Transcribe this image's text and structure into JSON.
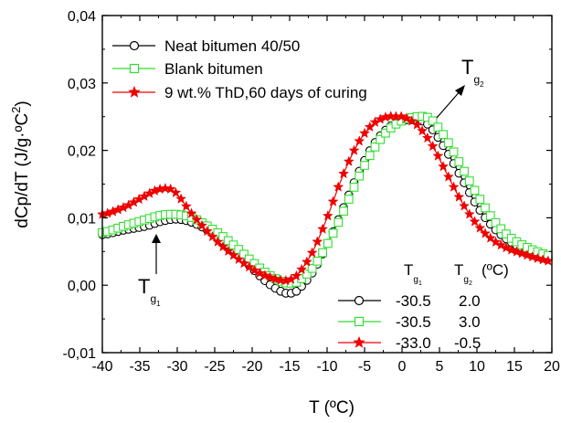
{
  "chart_data": {
    "type": "line",
    "xlabel": "T (ºC)",
    "ylabel": "dCp/dT (J/g·ºC²)",
    "ylabel_parts": {
      "pre": "dCp/dT (J/g·ºC",
      "sup": "2",
      "post": ")"
    },
    "xlim": [
      -40,
      20
    ],
    "ylim": [
      -0.01,
      0.04
    ],
    "x_ticks": [
      "-40",
      "-35",
      "-30",
      "-25",
      "-20",
      "-15",
      "-10",
      "-5",
      "0",
      "5",
      "10",
      "15",
      "20"
    ],
    "y_ticks": [
      "-0,01",
      "0,00",
      "0,01",
      "0,02",
      "0,03",
      "0,04"
    ],
    "grid": false,
    "legend_position": "top-left",
    "series": [
      {
        "name": "Neat bitumen 40/50",
        "color": "#000000",
        "marker": "circle",
        "x": [
          -40,
          -37,
          -34,
          -32,
          -30,
          -28,
          -26,
          -24,
          -22,
          -20,
          -18,
          -16,
          -15,
          -14,
          -12,
          -10,
          -8,
          -6,
          -4,
          -2,
          0,
          2,
          3,
          4,
          6,
          8,
          10,
          12,
          14,
          16,
          18,
          20
        ],
        "y": [
          0.0075,
          0.0082,
          0.0088,
          0.0095,
          0.0098,
          0.0093,
          0.0082,
          0.0067,
          0.0048,
          0.0025,
          0.0004,
          -0.001,
          -0.0012,
          -0.0008,
          0.0018,
          0.006,
          0.011,
          0.0162,
          0.0205,
          0.0232,
          0.0244,
          0.0245,
          0.0242,
          0.0232,
          0.0198,
          0.0158,
          0.0118,
          0.0088,
          0.0068,
          0.0055,
          0.0047,
          0.004
        ]
      },
      {
        "name": "Blank bitumen",
        "color": "#33dd33",
        "marker": "square",
        "x": [
          -40,
          -37,
          -34,
          -32,
          -30,
          -28,
          -26,
          -24,
          -22,
          -20,
          -18,
          -16,
          -15,
          -14,
          -12,
          -10,
          -8,
          -6,
          -4,
          -2,
          0,
          2,
          3,
          4,
          6,
          8,
          10,
          12,
          14,
          16,
          18,
          20
        ],
        "y": [
          0.0078,
          0.0088,
          0.0098,
          0.0104,
          0.0105,
          0.01,
          0.0088,
          0.0073,
          0.0055,
          0.0035,
          0.0017,
          0.0005,
          0.0003,
          0.0005,
          0.0025,
          0.006,
          0.0105,
          0.0155,
          0.0198,
          0.0228,
          0.0244,
          0.025,
          0.025,
          0.0245,
          0.0215,
          0.0175,
          0.0135,
          0.01,
          0.0075,
          0.006,
          0.005,
          0.0043
        ]
      },
      {
        "name": "9 wt.% ThD,60 days of curing",
        "color": "#ee0000",
        "marker": "star",
        "x": [
          -40,
          -37,
          -35,
          -33,
          -32,
          -31,
          -30,
          -29,
          -28,
          -26,
          -24,
          -22,
          -20,
          -18,
          -16,
          -15,
          -14,
          -12,
          -10,
          -8,
          -6,
          -4,
          -2,
          -1,
          0,
          1,
          2,
          4,
          6,
          8,
          10,
          12,
          14,
          16,
          18,
          20
        ],
        "y": [
          0.0105,
          0.0116,
          0.0128,
          0.014,
          0.0143,
          0.0143,
          0.0135,
          0.012,
          0.0105,
          0.008,
          0.0058,
          0.004,
          0.0024,
          0.0013,
          0.0007,
          0.0008,
          0.0015,
          0.0048,
          0.01,
          0.016,
          0.0208,
          0.0238,
          0.025,
          0.025,
          0.025,
          0.0245,
          0.0238,
          0.0208,
          0.0165,
          0.0123,
          0.009,
          0.0068,
          0.0055,
          0.0047,
          0.004,
          0.0035
        ]
      }
    ],
    "annotations": [
      {
        "base": "T",
        "sub": "g",
        "subsub": "1"
      },
      {
        "base": "T",
        "sub": "g",
        "subsub": "2"
      }
    ],
    "table": {
      "header": {
        "tg1": {
          "base": "T",
          "sub": "g",
          "subsub": "1"
        },
        "tg2": {
          "base": "T",
          "sub": "g",
          "subsub": "2"
        },
        "unit": "(ºC)"
      },
      "rows": [
        {
          "tg1": "-30.5",
          "tg2": "2.0"
        },
        {
          "tg1": "-30.5",
          "tg2": "3.0"
        },
        {
          "tg1": "-33.0",
          "tg2": "-0.5"
        }
      ]
    }
  }
}
